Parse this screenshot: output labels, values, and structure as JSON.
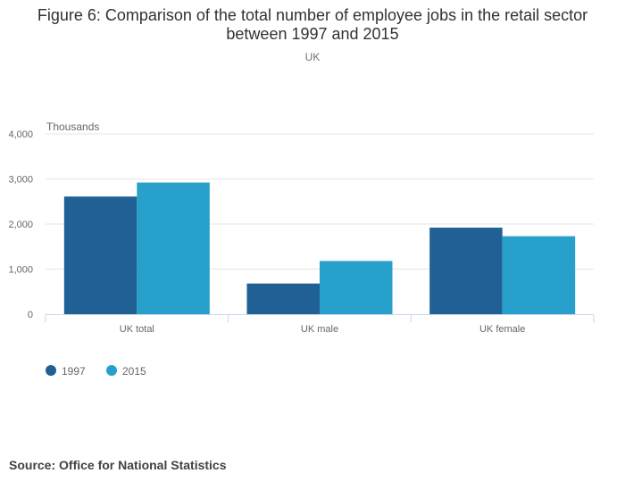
{
  "title": "Figure 6: Comparison of the total number of employee jobs in the retail sector between 1997 and 2015",
  "subtitle": "UK",
  "source": "Source: Office for National Statistics",
  "colors": {
    "series_1997": "#206095",
    "series_2015": "#27a0cc",
    "grid": "#e6e6e6",
    "axis": "#ccd6eb",
    "text": "#666666"
  },
  "chart_data": {
    "type": "bar",
    "title": "Figure 6: Comparison of the total number of employee jobs in the retail sector between 1997 and 2015",
    "subtitle": "UK",
    "ylabel": "Thousands",
    "xlabel": "",
    "categories": [
      "UK total",
      "UK male",
      "UK female"
    ],
    "series": [
      {
        "name": "1997",
        "values": [
          2610,
          680,
          1920
        ]
      },
      {
        "name": "2015",
        "values": [
          2920,
          1180,
          1730
        ]
      }
    ],
    "ylim": [
      0,
      4000
    ],
    "yticks": [
      0,
      1000,
      2000,
      3000,
      4000
    ],
    "ytick_labels": [
      "0",
      "1,000",
      "2,000",
      "3,000",
      "4,000"
    ],
    "grid": true,
    "legend": "bottom-left"
  }
}
